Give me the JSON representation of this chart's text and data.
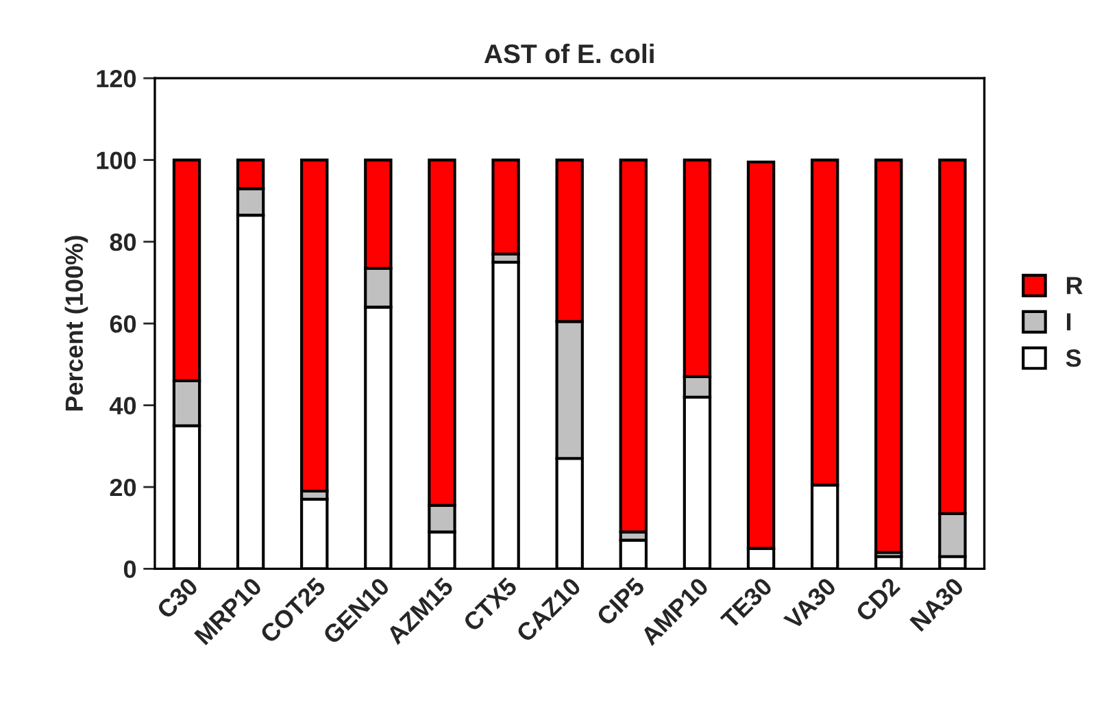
{
  "chart_data": {
    "type": "bar",
    "title": "AST of E. coli",
    "ylabel": "Percent (100%)",
    "categories": [
      "C30",
      "MRP10",
      "COT25",
      "GEN10",
      "AZM15",
      "CTX5",
      "CAZ10",
      "CIP5",
      "AMP10",
      "TE30",
      "VA30",
      "CD2",
      "NA30"
    ],
    "stacked": true,
    "series": [
      {
        "name": "S",
        "color": "#ffffff",
        "values": [
          35,
          86.5,
          17,
          64,
          9,
          75,
          27,
          7,
          42,
          5,
          20.5,
          3,
          3
        ]
      },
      {
        "name": "I",
        "color": "#c0c0c0",
        "values": [
          11,
          6.5,
          2,
          9.5,
          6.5,
          2,
          33.5,
          2,
          5,
          null,
          0,
          1,
          10.5
        ]
      },
      {
        "name": "R",
        "color": "#ff0000",
        "values": [
          54,
          7,
          81,
          26.5,
          84.5,
          23,
          39.5,
          91,
          53,
          94.5,
          79.5,
          96,
          86.5
        ]
      }
    ],
    "ylim": [
      0,
      120
    ],
    "yticks": [
      0,
      20,
      40,
      60,
      80,
      100,
      120
    ],
    "grid": false,
    "legend": "right"
  }
}
